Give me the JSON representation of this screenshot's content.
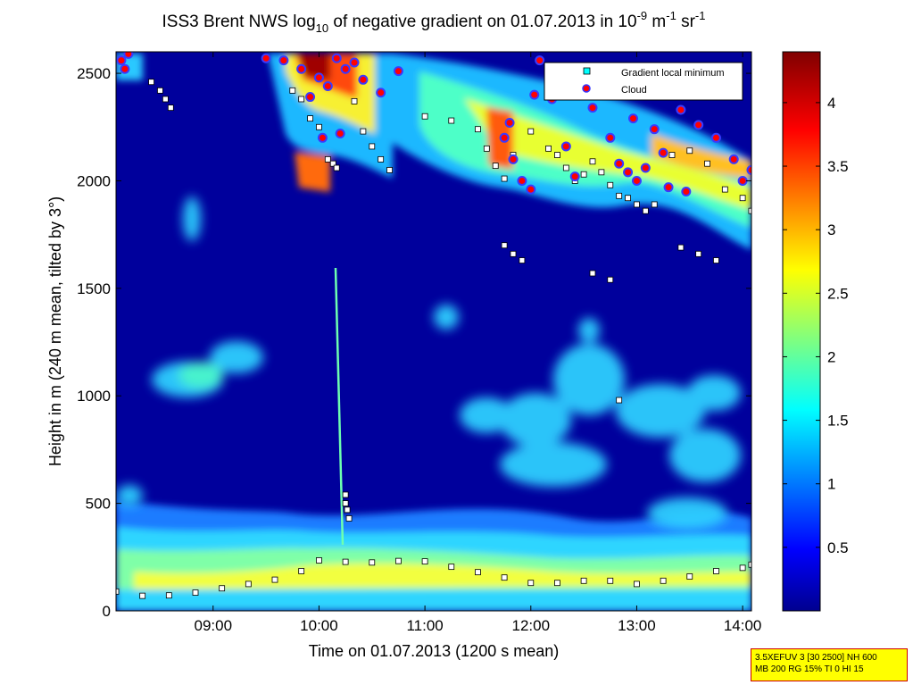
{
  "chart_data": {
    "type": "heatmap",
    "title": {
      "prefix": "ISS3 Brent NWS log",
      "log_subscript": "10",
      "middle": " of negative gradient on 01.07.2013 in 10",
      "exp1": "-9",
      "unit_mid": " m",
      "exp2": "-1",
      "unit_end": " sr",
      "exp3": "-1"
    },
    "xlabel": "Time on 01.07.2013 (1200 s mean)",
    "ylabel": "Height in m (240 m mean, tilted by 3°)",
    "xlim": [
      "08:05",
      "14:05"
    ],
    "ylim": [
      0,
      2600
    ],
    "x_ticks": [
      "09:00",
      "10:00",
      "11:00",
      "12:00",
      "13:00",
      "14:00"
    ],
    "y_ticks": [
      0,
      500,
      1000,
      1500,
      2000,
      2500
    ],
    "colorbar": {
      "range": [
        0,
        4.4
      ],
      "ticks": [
        "0.5",
        "1",
        "1.5",
        "2",
        "2.5",
        "3",
        "3.5",
        "4"
      ],
      "colormap": "jet"
    },
    "legend": {
      "placement": "top-right",
      "entries": [
        "Gradient local minimum",
        "Cloud"
      ]
    },
    "series": [
      {
        "name": "Gradient local minimum",
        "marker": "square",
        "color": "#ffffff",
        "points": [
          [
            "08:05",
            90
          ],
          [
            "08:20",
            70
          ],
          [
            "08:35",
            72
          ],
          [
            "08:50",
            85
          ],
          [
            "09:05",
            105
          ],
          [
            "09:20",
            125
          ],
          [
            "09:35",
            145
          ],
          [
            "09:50",
            185
          ],
          [
            "10:00",
            235
          ],
          [
            "10:15",
            228
          ],
          [
            "10:30",
            225
          ],
          [
            "10:45",
            232
          ],
          [
            "11:00",
            230
          ],
          [
            "11:15",
            205
          ],
          [
            "11:30",
            180
          ],
          [
            "11:45",
            155
          ],
          [
            "12:00",
            130
          ],
          [
            "12:15",
            130
          ],
          [
            "12:30",
            140
          ],
          [
            "12:45",
            140
          ],
          [
            "13:00",
            125
          ],
          [
            "13:15",
            140
          ],
          [
            "13:30",
            160
          ],
          [
            "13:45",
            185
          ],
          [
            "14:00",
            200
          ],
          [
            "14:05",
            215
          ],
          [
            "08:25",
            2460
          ],
          [
            "08:30",
            2420
          ],
          [
            "08:33",
            2380
          ],
          [
            "08:36",
            2340
          ],
          [
            "09:45",
            2420
          ],
          [
            "09:50",
            2380
          ],
          [
            "09:55",
            2290
          ],
          [
            "10:00",
            2250
          ],
          [
            "10:05",
            2100
          ],
          [
            "10:08",
            2080
          ],
          [
            "10:10",
            2060
          ],
          [
            "10:20",
            2370
          ],
          [
            "10:25",
            2230
          ],
          [
            "10:30",
            2160
          ],
          [
            "10:35",
            2100
          ],
          [
            "10:40",
            2050
          ],
          [
            "11:00",
            2300
          ],
          [
            "11:15",
            2280
          ],
          [
            "11:30",
            2240
          ],
          [
            "11:35",
            2150
          ],
          [
            "11:40",
            2070
          ],
          [
            "11:45",
            2010
          ],
          [
            "11:50",
            2120
          ],
          [
            "12:00",
            2230
          ],
          [
            "12:10",
            2150
          ],
          [
            "12:15",
            2120
          ],
          [
            "12:20",
            2060
          ],
          [
            "12:25",
            2000
          ],
          [
            "12:30",
            2030
          ],
          [
            "12:35",
            2090
          ],
          [
            "12:40",
            2040
          ],
          [
            "12:45",
            1980
          ],
          [
            "12:50",
            1930
          ],
          [
            "12:55",
            1920
          ],
          [
            "13:00",
            1890
          ],
          [
            "13:05",
            1860
          ],
          [
            "13:10",
            1890
          ],
          [
            "13:20",
            2120
          ],
          [
            "13:30",
            2140
          ],
          [
            "13:40",
            2080
          ],
          [
            "13:50",
            1960
          ],
          [
            "14:00",
            1920
          ],
          [
            "14:05",
            1860
          ],
          [
            "11:45",
            1700
          ],
          [
            "11:50",
            1660
          ],
          [
            "11:55",
            1630
          ],
          [
            "13:25",
            1690
          ],
          [
            "13:35",
            1660
          ],
          [
            "13:45",
            1630
          ],
          [
            "12:35",
            1570
          ],
          [
            "12:45",
            1540
          ],
          [
            "12:50",
            980
          ],
          [
            "10:15",
            540
          ],
          [
            "10:15",
            500
          ],
          [
            "10:16",
            470
          ],
          [
            "10:17",
            430
          ]
        ]
      },
      {
        "name": "Cloud",
        "marker": "circle",
        "color": "#ff0000",
        "points": [
          [
            "08:08",
            2560
          ],
          [
            "08:10",
            2520
          ],
          [
            "08:12",
            2590
          ],
          [
            "09:30",
            2570
          ],
          [
            "09:40",
            2560
          ],
          [
            "09:50",
            2520
          ],
          [
            "10:00",
            2480
          ],
          [
            "10:05",
            2440
          ],
          [
            "10:10",
            2570
          ],
          [
            "10:15",
            2520
          ],
          [
            "10:20",
            2550
          ],
          [
            "09:55",
            2390
          ],
          [
            "10:02",
            2200
          ],
          [
            "10:12",
            2220
          ],
          [
            "10:25",
            2470
          ],
          [
            "10:35",
            2410
          ],
          [
            "10:45",
            2510
          ],
          [
            "11:45",
            2200
          ],
          [
            "11:50",
            2100
          ],
          [
            "11:55",
            2000
          ],
          [
            "12:00",
            1960
          ],
          [
            "11:48",
            2270
          ],
          [
            "12:02",
            2400
          ],
          [
            "12:05",
            2560
          ],
          [
            "12:12",
            2380
          ],
          [
            "12:20",
            2160
          ],
          [
            "12:25",
            2020
          ],
          [
            "12:35",
            2340
          ],
          [
            "12:45",
            2200
          ],
          [
            "12:50",
            2080
          ],
          [
            "12:55",
            2040
          ],
          [
            "13:00",
            2000
          ],
          [
            "13:05",
            2060
          ],
          [
            "13:10",
            2240
          ],
          [
            "13:15",
            2130
          ],
          [
            "13:25",
            2330
          ],
          [
            "13:35",
            2260
          ],
          [
            "13:45",
            2200
          ],
          [
            "13:55",
            2100
          ],
          [
            "14:00",
            2000
          ],
          [
            "14:05",
            2050
          ],
          [
            "13:18",
            1970
          ],
          [
            "13:28",
            1950
          ],
          [
            "12:58",
            2290
          ]
        ]
      }
    ]
  },
  "info_box": {
    "line1": "3.5XEFUV 3 [30 2500] NH 600",
    "line2": "MB 200 RG 15% TI 0 HI 15"
  }
}
